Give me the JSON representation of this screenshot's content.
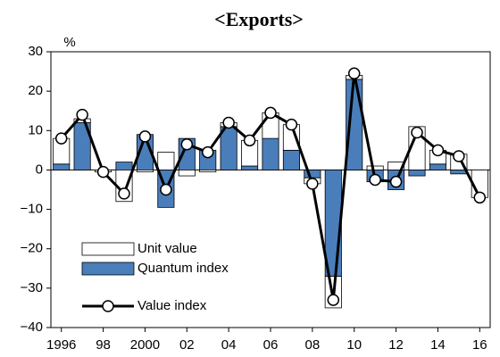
{
  "chart_data": {
    "type": "bar-line",
    "title": "<Exports>",
    "y_label": "%",
    "categories": [
      "1996",
      null,
      "98",
      null,
      "2000",
      null,
      "02",
      null,
      "04",
      null,
      "06",
      null,
      "08",
      null,
      "10",
      null,
      "12",
      null,
      "14",
      null,
      "16"
    ],
    "series": [
      {
        "name": "Unit value",
        "type": "bar",
        "color": "#ffffff",
        "values": [
          6.5,
          1,
          -0.5,
          -8,
          -0.5,
          4.5,
          -1.5,
          -0.5,
          1,
          6.5,
          6.5,
          6.5,
          -1.5,
          -8,
          1,
          1,
          2,
          11,
          3.5,
          4,
          -7
        ]
      },
      {
        "name": "Quantum index",
        "type": "bar",
        "color": "#4a7ebb",
        "values": [
          1.5,
          12,
          0,
          2,
          9,
          -9.5,
          8,
          5,
          11,
          1,
          8,
          5,
          -2,
          -27,
          23,
          -3,
          -5,
          -1.5,
          1.5,
          -1,
          0
        ]
      },
      {
        "name": "Value index",
        "type": "line",
        "color": "#000000",
        "values": [
          8,
          14,
          -0.5,
          -6,
          8.5,
          -5,
          6.5,
          4.5,
          12,
          7.5,
          14.5,
          11.5,
          -3.5,
          -33,
          24.5,
          -2.5,
          -3,
          9.5,
          5,
          3.5,
          -7
        ]
      }
    ],
    "ylim": [
      -40,
      30
    ],
    "yticks": [
      {
        "value": -40,
        "label": "−40"
      },
      {
        "value": -30,
        "label": "−30"
      },
      {
        "value": -20,
        "label": "−20"
      },
      {
        "value": -10,
        "label": "−10"
      },
      0,
      10,
      20,
      30
    ],
    "grid": false,
    "legend": "lower-left"
  }
}
